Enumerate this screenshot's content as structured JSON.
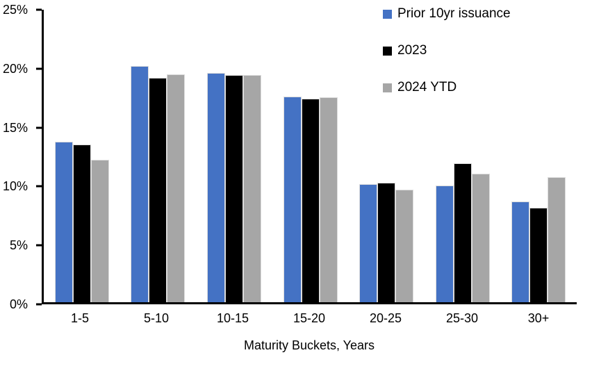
{
  "chart_data": {
    "type": "bar",
    "title": "",
    "categories": [
      "1-5",
      "5-10",
      "10-15",
      "15-20",
      "20-25",
      "25-30",
      "30+"
    ],
    "series": [
      {
        "name": "Prior 10yr issuance",
        "color": "#4472C4",
        "values": [
          13.7,
          20.2,
          19.6,
          17.6,
          10.1,
          10.0,
          8.6
        ]
      },
      {
        "name": "2023",
        "color": "#000000",
        "values": [
          13.5,
          19.2,
          19.4,
          17.4,
          10.2,
          11.9,
          8.1
        ]
      },
      {
        "name": "2024 YTD",
        "color": "#A6A6A6",
        "values": [
          12.2,
          19.5,
          19.4,
          17.5,
          9.6,
          11.0,
          10.7
        ]
      }
    ],
    "xlabel": "Maturity Buckets, Years",
    "ylabel": "",
    "ylim": [
      0,
      25
    ],
    "ytick_step": 5,
    "ytick_labels": [
      "0%",
      "5%",
      "10%",
      "15%",
      "20%",
      "25%"
    ],
    "grid": false,
    "legend_position": "top-right",
    "axis_color": "#000000",
    "background_color": "#FFFFFF"
  }
}
